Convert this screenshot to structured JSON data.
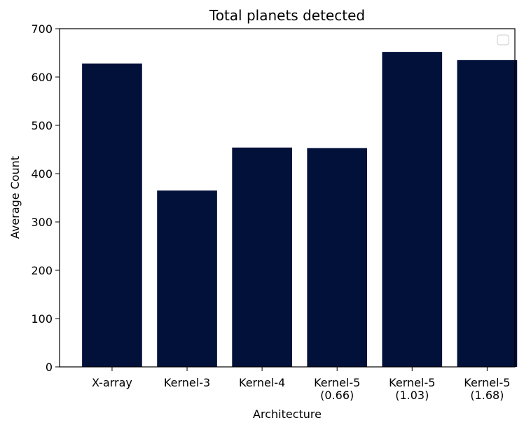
{
  "chart_data": {
    "type": "bar",
    "title": "Total planets detected",
    "xlabel": "Architecture",
    "ylabel": "Average Count",
    "categories": [
      [
        "X-array"
      ],
      [
        "Kernel-3"
      ],
      [
        "Kernel-4"
      ],
      [
        "Kernel-5",
        "(0.66)"
      ],
      [
        "Kernel-5",
        "(1.03)"
      ],
      [
        "Kernel-5",
        "(1.68)"
      ]
    ],
    "values": [
      628,
      365,
      454,
      453,
      652,
      635
    ],
    "ylim": [
      0,
      700
    ],
    "yticks": [
      0,
      100,
      200,
      300,
      400,
      500,
      600,
      700
    ],
    "bar_color": "#02113a",
    "grid": false,
    "legend": {
      "placement": "top-right",
      "entries": []
    }
  }
}
